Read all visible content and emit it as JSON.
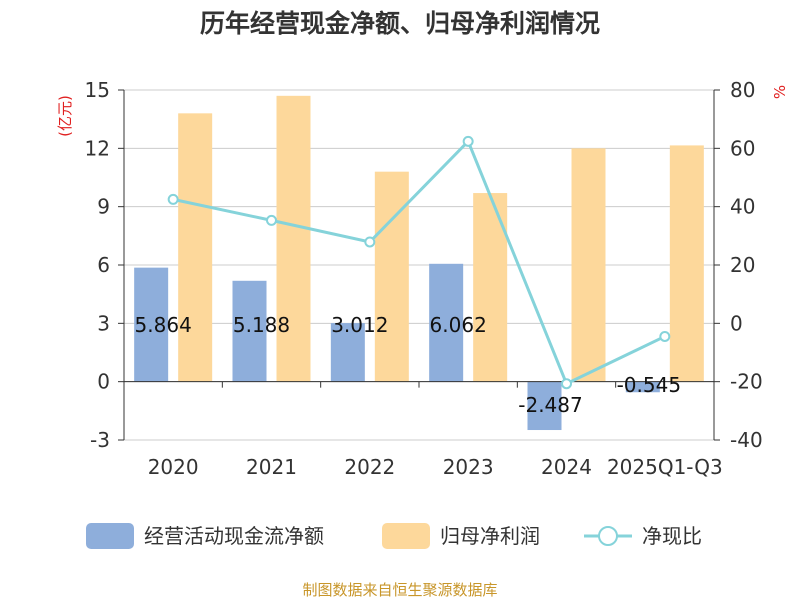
{
  "chart_data": {
    "type": "bar+line",
    "title": "历年经营现金净额、归母净利润情况",
    "categories": [
      "2020",
      "2021",
      "2022",
      "2023",
      "2024",
      "2025Q1-Q3"
    ],
    "series": [
      {
        "name": "经营活动现金流净额",
        "type": "bar",
        "axis": "left",
        "color": "#8eaedb",
        "values": [
          5.864,
          5.188,
          3.012,
          6.062,
          -2.487,
          -0.545
        ],
        "labels": [
          "5.864",
          "5.188",
          "3.012",
          "6.062",
          "-2.487",
          "-0.545"
        ]
      },
      {
        "name": "归母净利润",
        "type": "bar",
        "axis": "left",
        "color": "#fdd89b",
        "values": [
          13.8,
          14.7,
          10.8,
          9.7,
          12.0,
          12.15
        ]
      },
      {
        "name": "净现比",
        "type": "line",
        "axis": "right",
        "color": "#85d3da",
        "values": [
          42.5,
          35.3,
          27.9,
          62.4,
          -20.7,
          -4.5
        ]
      }
    ],
    "left_axis": {
      "label": "(亿元)",
      "min": -3,
      "max": 15,
      "ticks": [
        -3,
        0,
        3,
        6,
        9,
        12,
        15
      ]
    },
    "right_axis": {
      "label": "%",
      "min": -40,
      "max": 80,
      "ticks": [
        -40,
        -20,
        0,
        20,
        40,
        60,
        80
      ]
    },
    "grid": true,
    "legend_position": "bottom"
  },
  "source": "制图数据来自恒生聚源数据库",
  "colors": {
    "title": "#333333",
    "axis_unit": "#e02020",
    "source": "#c8962a",
    "grid": "#cccccc"
  }
}
